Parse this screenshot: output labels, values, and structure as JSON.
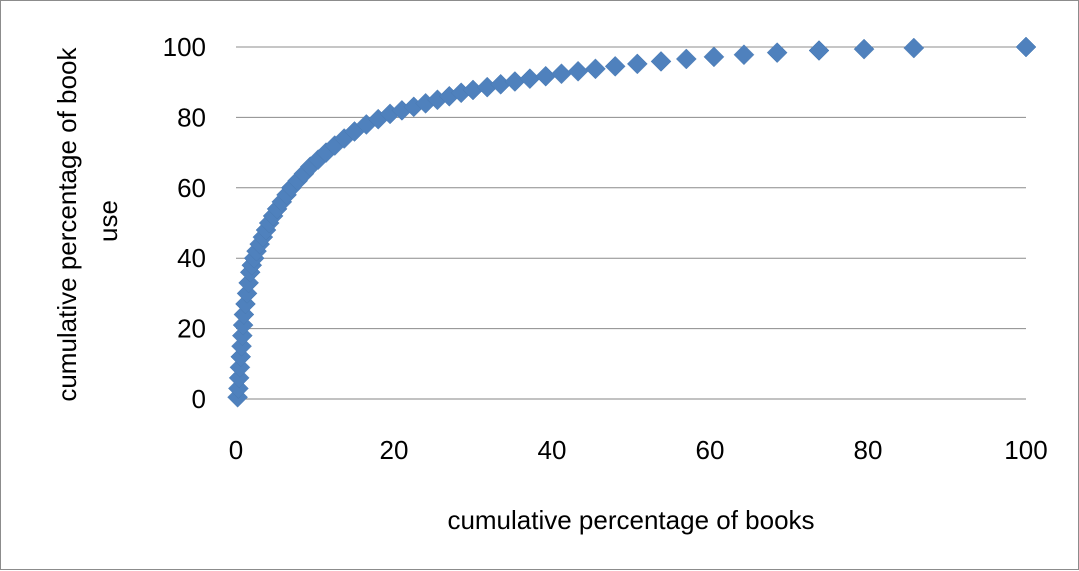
{
  "chart_data": {
    "type": "scatter",
    "title": "",
    "xlabel": "cumulative percentage of books",
    "ylabel_lines": [
      "cumulative percentage of book",
      "use"
    ],
    "xlim": [
      0,
      100
    ],
    "ylim": [
      0,
      100
    ],
    "x_ticks": [
      0,
      20,
      40,
      60,
      80,
      100
    ],
    "y_ticks": [
      0,
      20,
      40,
      60,
      80,
      100
    ],
    "grid": "horizontal",
    "legend": "none",
    "marker": "diamond",
    "series": [
      {
        "color": "#4f81bd",
        "points": [
          [
            0.2,
            0.5
          ],
          [
            0.3,
            3
          ],
          [
            0.4,
            6
          ],
          [
            0.5,
            9
          ],
          [
            0.6,
            12
          ],
          [
            0.7,
            15
          ],
          [
            0.8,
            18
          ],
          [
            0.9,
            21
          ],
          [
            1.0,
            24
          ],
          [
            1.2,
            27
          ],
          [
            1.4,
            30
          ],
          [
            1.6,
            33
          ],
          [
            1.8,
            36
          ],
          [
            2.0,
            38
          ],
          [
            2.3,
            40
          ],
          [
            2.6,
            42
          ],
          [
            3.0,
            44
          ],
          [
            3.4,
            46
          ],
          [
            3.8,
            48
          ],
          [
            4.2,
            50
          ],
          [
            4.7,
            52
          ],
          [
            5.2,
            54
          ],
          [
            5.8,
            56
          ],
          [
            6.4,
            58
          ],
          [
            7.0,
            60
          ],
          [
            7.8,
            62
          ],
          [
            8.6,
            64
          ],
          [
            9.4,
            66
          ],
          [
            10.4,
            68
          ],
          [
            11.4,
            70
          ],
          [
            12.5,
            72
          ],
          [
            13.7,
            74
          ],
          [
            15.0,
            76
          ],
          [
            16.5,
            78
          ],
          [
            18.0,
            79.5
          ],
          [
            19.5,
            81
          ],
          [
            21.0,
            82
          ],
          [
            22.5,
            83
          ],
          [
            24.0,
            84
          ],
          [
            25.5,
            85
          ],
          [
            27.0,
            86
          ],
          [
            28.5,
            87
          ],
          [
            30.0,
            87.8
          ],
          [
            31.8,
            88.6
          ],
          [
            33.5,
            89.4
          ],
          [
            35.3,
            90.2
          ],
          [
            37.2,
            91
          ],
          [
            39.2,
            91.7
          ],
          [
            41.2,
            92.4
          ],
          [
            43.3,
            93.1
          ],
          [
            45.5,
            93.8
          ],
          [
            48.0,
            94.5
          ],
          [
            50.8,
            95.2
          ],
          [
            53.8,
            95.9
          ],
          [
            57.0,
            96.6
          ],
          [
            60.5,
            97.2
          ],
          [
            64.3,
            97.8
          ],
          [
            68.5,
            98.4
          ],
          [
            73.8,
            99.0
          ],
          [
            79.5,
            99.4
          ],
          [
            85.8,
            99.7
          ],
          [
            100,
            100
          ]
        ]
      }
    ]
  }
}
